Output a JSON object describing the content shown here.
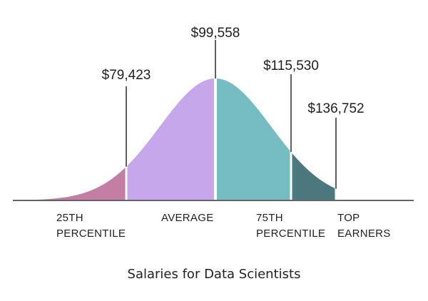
{
  "chart_data": {
    "type": "area",
    "title": "Salaries for Data Scientists",
    "segments": [
      {
        "label_lines": [
          "25TH",
          "PERCENTILE"
        ],
        "color": "#c27ea3"
      },
      {
        "label_lines": [
          "AVERAGE"
        ],
        "color": "#c6a7ec"
      },
      {
        "label_lines": [
          "75TH",
          "PERCENTILE"
        ],
        "color": "#76bcc3"
      },
      {
        "label_lines": [
          "TOP",
          "EARNERS"
        ],
        "color": "#4c797d"
      }
    ],
    "markers": [
      {
        "value": 79423,
        "label": "$79,423"
      },
      {
        "value": 99558,
        "label": "$99,558"
      },
      {
        "value": 115530,
        "label": "$115,530"
      },
      {
        "value": 136752,
        "label": "$136,752"
      }
    ],
    "baseline_color": "#666666"
  }
}
